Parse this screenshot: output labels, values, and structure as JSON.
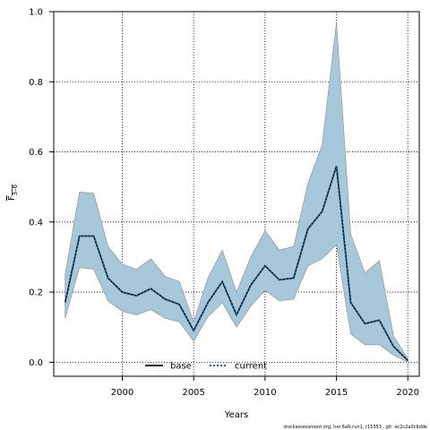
{
  "chart_data": {
    "type": "line",
    "title": "",
    "xlabel": "Years",
    "ylabel_main": "F",
    "ylabel_sub": "3–6",
    "xlim": [
      1995.2,
      2020.8
    ],
    "ylim": [
      -0.04,
      1.0
    ],
    "x_ticks": [
      2000,
      2005,
      2010,
      2015,
      2020
    ],
    "y_ticks": [
      0.0,
      0.2,
      0.4,
      0.6,
      0.8,
      1.0
    ],
    "x_tick_labels": [
      "2000",
      "2005",
      "2010",
      "2015",
      "2020"
    ],
    "y_tick_labels": [
      "0.0",
      "0.2",
      "0.4",
      "0.6",
      "0.8",
      "1.0"
    ],
    "grid": true,
    "x": [
      1996,
      1997,
      1998,
      1999,
      2000,
      2001,
      2002,
      2003,
      2004,
      2005,
      2006,
      2007,
      2008,
      2009,
      2010,
      2011,
      2012,
      2013,
      2014,
      2015,
      2016,
      2017,
      2018,
      2019,
      2020
    ],
    "band": {
      "color": "#a6c8da",
      "edge_color": "#8a8a8a",
      "upper": [
        0.25,
        0.485,
        0.482,
        0.33,
        0.28,
        0.265,
        0.295,
        0.245,
        0.23,
        0.115,
        0.24,
        0.32,
        0.2,
        0.3,
        0.375,
        0.32,
        0.33,
        0.51,
        0.62,
        0.97,
        0.365,
        0.255,
        0.29,
        0.075,
        0.01
      ],
      "lower": [
        0.125,
        0.27,
        0.265,
        0.175,
        0.145,
        0.135,
        0.15,
        0.125,
        0.115,
        0.06,
        0.13,
        0.17,
        0.1,
        0.16,
        0.205,
        0.175,
        0.18,
        0.275,
        0.295,
        0.335,
        0.08,
        0.05,
        0.05,
        0.02,
        0.0
      ]
    },
    "series": [
      {
        "name": "base",
        "color": "#000000",
        "style": "solid",
        "values": [
          0.17,
          0.36,
          0.36,
          0.24,
          0.2,
          0.19,
          0.21,
          0.18,
          0.165,
          0.09,
          0.17,
          0.23,
          0.135,
          0.22,
          0.275,
          0.235,
          0.24,
          0.38,
          0.43,
          0.56,
          0.17,
          0.11,
          0.12,
          0.045,
          0.005
        ]
      },
      {
        "name": "current",
        "color": "#1f6a99",
        "style": "dashed",
        "values": [
          0.17,
          0.36,
          0.36,
          0.24,
          0.2,
          0.19,
          0.21,
          0.18,
          0.165,
          0.09,
          0.17,
          0.23,
          0.135,
          0.22,
          0.275,
          0.235,
          0.24,
          0.38,
          0.43,
          0.56,
          0.17,
          0.11,
          0.12,
          0.045,
          0.005
        ]
      }
    ],
    "legend": {
      "placement": "bottom-center",
      "items": [
        "base",
        "current"
      ]
    }
  },
  "footnote": "stockassessment.org, her.6aN.run1, r15353 , git: ec2c2a0c6dde"
}
